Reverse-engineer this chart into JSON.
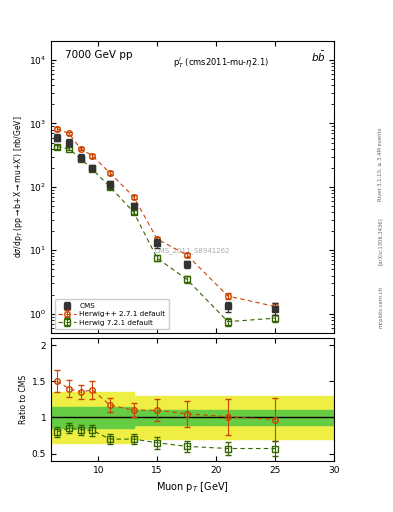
{
  "title_left": "7000 GeV pp",
  "title_right": "b$\\bar{b}$",
  "annotation": "p$^l_T$ (cms2011-mu-η2.1)",
  "watermark": "CMS_2011_S8941262",
  "ylabel_ratio": "Ratio to CMS",
  "xlabel": "Muon p$_T$ [GeV]",
  "right_label": "Rivet 3.1.10, ≥ 3.4M events",
  "arxiv_label": "[arXiv:1306.3436]",
  "mcplots_label": "mcplots.cern.ch",
  "cms_x": [
    6.5,
    7.5,
    8.5,
    9.5,
    11.0,
    13.0,
    15.0,
    17.5,
    21.0,
    25.0
  ],
  "cms_y": [
    600,
    500,
    290,
    200,
    110,
    50,
    13,
    6.0,
    1.3,
    1.2
  ],
  "cms_yerr": [
    80,
    60,
    35,
    25,
    14,
    6,
    2.0,
    0.8,
    0.25,
    0.25
  ],
  "hpp_x": [
    6.5,
    7.5,
    8.5,
    9.5,
    11.0,
    13.0,
    15.0,
    17.5,
    21.0,
    25.0
  ],
  "hpp_y": [
    820,
    700,
    400,
    310,
    165,
    70,
    15,
    8.5,
    1.9,
    1.3
  ],
  "hpp_yerr": [
    50,
    40,
    25,
    20,
    10,
    5,
    1.5,
    0.7,
    0.2,
    0.15
  ],
  "h72_x": [
    6.5,
    7.5,
    8.5,
    9.5,
    11.0,
    13.0,
    15.0,
    17.5,
    21.0,
    25.0
  ],
  "h72_y": [
    430,
    400,
    280,
    190,
    100,
    40,
    7.5,
    3.5,
    0.75,
    0.85
  ],
  "h72_yerr": [
    30,
    25,
    18,
    12,
    7,
    3,
    0.8,
    0.4,
    0.1,
    0.1
  ],
  "ratio_hpp_x": [
    6.5,
    7.5,
    8.5,
    9.5,
    11.0,
    13.0,
    15.0,
    17.5,
    21.0,
    25.0
  ],
  "ratio_hpp_y": [
    1.5,
    1.4,
    1.35,
    1.38,
    1.17,
    1.1,
    1.1,
    1.05,
    1.01,
    0.97
  ],
  "ratio_hpp_yerr": [
    0.15,
    0.12,
    0.1,
    0.12,
    0.1,
    0.1,
    0.15,
    0.18,
    0.25,
    0.3
  ],
  "ratio_h72_x": [
    6.5,
    7.5,
    8.5,
    9.5,
    11.0,
    13.0,
    15.0,
    17.5,
    21.0,
    25.0
  ],
  "ratio_h72_y": [
    0.8,
    0.85,
    0.83,
    0.82,
    0.7,
    0.7,
    0.65,
    0.6,
    0.57,
    0.57
  ],
  "ratio_h72_yerr": [
    0.07,
    0.07,
    0.07,
    0.07,
    0.07,
    0.07,
    0.08,
    0.08,
    0.09,
    0.1
  ],
  "band_x": [
    6.0,
    9.5,
    13.0,
    17.5,
    25.0,
    30.0
  ],
  "band_green_lo": [
    0.85,
    0.85,
    0.9,
    0.9,
    0.9,
    0.9
  ],
  "band_green_hi": [
    1.15,
    1.15,
    1.1,
    1.1,
    1.1,
    1.1
  ],
  "band_yellow_lo": [
    0.65,
    0.65,
    0.7,
    0.7,
    0.7,
    0.7
  ],
  "band_yellow_hi": [
    1.35,
    1.35,
    1.3,
    1.3,
    1.3,
    1.3
  ],
  "ylim_main": [
    0.5,
    20000
  ],
  "ylim_ratio": [
    0.4,
    2.1
  ],
  "xlim": [
    6.0,
    30.0
  ],
  "cms_color": "#333333",
  "hpp_color": "#cc4400",
  "h72_color": "#336600",
  "green_band_color": "#66cc44",
  "yellow_band_color": "#eeee44",
  "bg_color": "#ffffff"
}
